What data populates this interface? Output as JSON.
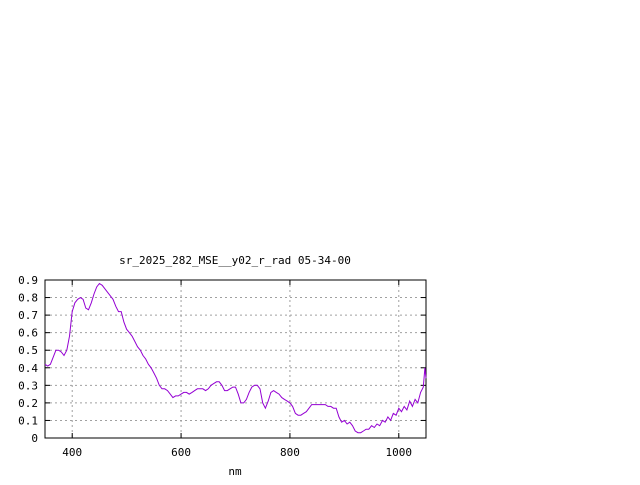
{
  "chart_data": {
    "type": "line",
    "title": "sr_2025_282_MSE__y02_r_rad 05-34-00",
    "xlabel": "nm",
    "ylabel": "",
    "xlim": [
      350,
      1050
    ],
    "ylim": [
      0,
      0.9
    ],
    "x_ticks": [
      400,
      600,
      800,
      1000
    ],
    "y_ticks": [
      0,
      0.1,
      0.2,
      0.3,
      0.4,
      0.5,
      0.6,
      0.7,
      0.8,
      0.9
    ],
    "x_tick_labels": [
      "400",
      "600",
      "800",
      "1000"
    ],
    "y_tick_labels": [
      "0",
      "0.1",
      "0.2",
      "0.3",
      "0.4",
      "0.5",
      "0.6",
      "0.7",
      "0.8",
      "0.9"
    ],
    "grid": true,
    "legend": "none",
    "series": [
      {
        "color": "#9400D3",
        "x": [
          350,
          355,
          360,
          365,
          370,
          375,
          380,
          385,
          390,
          395,
          400,
          405,
          410,
          415,
          420,
          425,
          430,
          435,
          440,
          445,
          450,
          455,
          460,
          465,
          470,
          475,
          480,
          485,
          490,
          495,
          500,
          505,
          510,
          515,
          520,
          525,
          530,
          535,
          540,
          545,
          550,
          555,
          560,
          565,
          570,
          575,
          580,
          585,
          590,
          595,
          600,
          605,
          610,
          615,
          620,
          625,
          630,
          635,
          640,
          645,
          650,
          655,
          660,
          665,
          670,
          675,
          680,
          685,
          690,
          695,
          700,
          705,
          710,
          715,
          720,
          725,
          730,
          735,
          740,
          745,
          750,
          755,
          760,
          765,
          770,
          775,
          780,
          785,
          790,
          795,
          800,
          805,
          810,
          815,
          820,
          825,
          830,
          835,
          840,
          845,
          850,
          855,
          860,
          865,
          870,
          875,
          880,
          885,
          890,
          895,
          900,
          905,
          910,
          915,
          920,
          925,
          930,
          935,
          940,
          945,
          950,
          955,
          960,
          965,
          970,
          975,
          980,
          985,
          990,
          995,
          1000,
          1005,
          1010,
          1015,
          1020,
          1025,
          1030,
          1035,
          1040,
          1045,
          1048,
          1050
        ],
        "y": [
          0.42,
          0.41,
          0.42,
          0.46,
          0.5,
          0.5,
          0.49,
          0.47,
          0.5,
          0.58,
          0.72,
          0.77,
          0.79,
          0.8,
          0.79,
          0.74,
          0.73,
          0.77,
          0.82,
          0.86,
          0.88,
          0.87,
          0.85,
          0.83,
          0.81,
          0.79,
          0.75,
          0.72,
          0.72,
          0.66,
          0.62,
          0.6,
          0.58,
          0.55,
          0.52,
          0.5,
          0.47,
          0.45,
          0.42,
          0.4,
          0.37,
          0.34,
          0.3,
          0.28,
          0.28,
          0.27,
          0.25,
          0.23,
          0.24,
          0.24,
          0.25,
          0.26,
          0.26,
          0.25,
          0.26,
          0.27,
          0.28,
          0.28,
          0.28,
          0.27,
          0.28,
          0.3,
          0.31,
          0.32,
          0.32,
          0.3,
          0.27,
          0.27,
          0.28,
          0.29,
          0.29,
          0.25,
          0.2,
          0.2,
          0.22,
          0.26,
          0.29,
          0.3,
          0.3,
          0.28,
          0.2,
          0.17,
          0.21,
          0.26,
          0.27,
          0.26,
          0.25,
          0.23,
          0.22,
          0.21,
          0.2,
          0.18,
          0.14,
          0.13,
          0.13,
          0.14,
          0.15,
          0.17,
          0.19,
          0.19,
          0.19,
          0.19,
          0.19,
          0.19,
          0.18,
          0.18,
          0.17,
          0.17,
          0.12,
          0.09,
          0.1,
          0.08,
          0.09,
          0.07,
          0.04,
          0.03,
          0.03,
          0.04,
          0.05,
          0.05,
          0.07,
          0.06,
          0.08,
          0.07,
          0.1,
          0.09,
          0.12,
          0.1,
          0.14,
          0.13,
          0.17,
          0.15,
          0.18,
          0.16,
          0.21,
          0.18,
          0.22,
          0.2,
          0.26,
          0.29,
          0.4,
          0.34
        ]
      }
    ]
  }
}
